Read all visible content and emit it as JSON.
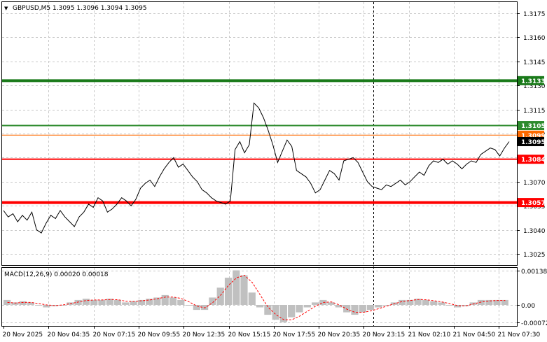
{
  "header": {
    "arrow": "▼",
    "symbol_text": "GBPUSD,M5  1.3095 1.3096 1.3094 1.3095"
  },
  "macd_header": "MACD(12,26,9) 0.00020 0.00018",
  "colors": {
    "background": "#ffffff",
    "grid": "#c8c8c8",
    "price_line": "#000000",
    "resistance_far": "#1a7a1a",
    "resistance_near": "#2e8b2e",
    "support": "#ff0000",
    "macd_hist": "#c0c0c0",
    "macd_signal": "#ff0000",
    "current_tag": "#000000",
    "orange_tag": "#ff6a00"
  },
  "chart_data": [
    {
      "type": "line",
      "title": "GBPUSD,M5  1.3095 1.3096 1.3094 1.3095",
      "x_ticks": [
        "20 Nov 2025",
        "20 Nov 04:35",
        "20 Nov 07:15",
        "20 Nov 09:55",
        "20 Nov 12:35",
        "20 Nov 15:15",
        "20 Nov 17:55",
        "20 Nov 20:35",
        "20 Nov 23:15",
        "21 Nov 02:10",
        "21 Nov 04:50",
        "21 Nov 07:30"
      ],
      "y_ticks": [
        "1.3175",
        "1.3160",
        "1.3145",
        "1.3130",
        "1.3115",
        "1.3100",
        "1.3085",
        "1.3070",
        "1.3055",
        "1.3040",
        "1.3025"
      ],
      "ylim": [
        1.3018,
        1.3182
      ],
      "grid": true,
      "series": [
        {
          "values": [
            1.3052,
            1.3048,
            1.305,
            1.3045,
            1.3049,
            1.3046,
            1.3051,
            1.304,
            1.3038,
            1.3044,
            1.3049,
            1.3047,
            1.3052,
            1.3048,
            1.3045,
            1.3042,
            1.3048,
            1.3051,
            1.3056,
            1.3054,
            1.306,
            1.3058,
            1.3051,
            1.3053,
            1.3056,
            1.306,
            1.3058,
            1.3055,
            1.3059,
            1.3066,
            1.3069,
            1.3071,
            1.3067,
            1.3073,
            1.3078,
            1.3082,
            1.3085,
            1.3079,
            1.3081,
            1.3077,
            1.3073,
            1.307,
            1.3065,
            1.3063,
            1.306,
            1.3058,
            1.3057,
            1.3056,
            1.3058,
            1.309,
            1.3095,
            1.3088,
            1.3093,
            1.3119,
            1.3116,
            1.311,
            1.3102,
            1.3093,
            1.3082,
            1.3089,
            1.3096,
            1.3092,
            1.3077,
            1.3075,
            1.3073,
            1.3069,
            1.3063,
            1.3065,
            1.3071,
            1.3077,
            1.3075,
            1.3071,
            1.3083,
            1.3084,
            1.3085,
            1.3082,
            1.3076,
            1.307,
            1.3067,
            1.3066,
            1.3065,
            1.3068,
            1.3067,
            1.3069,
            1.3071,
            1.3068,
            1.307,
            1.3073,
            1.3076,
            1.3074,
            1.308,
            1.3083,
            1.3082,
            1.3084,
            1.3081,
            1.3083,
            1.3081,
            1.3078,
            1.3081,
            1.3083,
            1.3082,
            1.3087,
            1.3089,
            1.3091,
            1.309,
            1.3086,
            1.3091,
            1.3095
          ]
        }
      ],
      "levels": [
        {
          "label": "1.3133",
          "value": 1.3133,
          "color": "#1a7a1a"
        },
        {
          "label": "1.3105",
          "value": 1.3105,
          "color": "#2e8b2e"
        },
        {
          "label": "1.3099",
          "value": 1.3099,
          "color": "#ff6a00"
        },
        {
          "label": "1.3095",
          "value": 1.3095,
          "color": "#000000"
        },
        {
          "label": "1.3084",
          "value": 1.3084,
          "color": "#ff0000"
        },
        {
          "label": "1.3057",
          "value": 1.3057,
          "color": "#ff0000"
        }
      ],
      "vertical_marker": "21 Nov 2025 00:00 (dashed)"
    },
    {
      "type": "bar",
      "title": "MACD(12,26,9) 0.00020 0.00018",
      "y_ticks": [
        "0.00138",
        "0.00",
        "-0.00072"
      ],
      "ylim": [
        -0.00085,
        0.0015
      ],
      "grid": true,
      "series": [
        {
          "name": "MACD",
          "values": [
            0.0002,
            0.0001,
            0.00015,
            0.0001,
            0.0,
            -0.0001,
            -5e-05,
            0.0,
            0.0001,
            0.0002,
            0.00025,
            0.0002,
            0.0002,
            0.00025,
            0.0002,
            0.0001,
            0.00015,
            0.0002,
            0.00025,
            0.0003,
            0.0004,
            0.0003,
            0.0002,
            0.0,
            -0.0002,
            -0.0002,
            0.0003,
            0.0007,
            0.0011,
            0.0014,
            0.0012,
            0.0005,
            -0.0001,
            -0.0004,
            -0.0006,
            -0.0007,
            -0.0005,
            -0.0003,
            -0.0001,
            0.0001,
            0.0002,
            0.0001,
            -0.0001,
            -0.0003,
            -0.0004,
            -0.0003,
            -0.0002,
            -0.0001,
            0.0,
            0.0001,
            0.0002,
            0.0002,
            0.00025,
            0.0002,
            0.00015,
            0.0001,
            0.0,
            -0.0001,
            -5e-05,
            0.0001,
            0.0002,
            0.0002,
            0.0002,
            0.0002
          ]
        },
        {
          "name": "Signal",
          "values": [
            0.0001,
            8e-05,
            0.0001,
            0.0001,
            5e-05,
            0.0,
            -3e-05,
            0.0,
            5e-05,
            0.00012,
            0.00018,
            0.0002,
            0.0002,
            0.00022,
            0.00021,
            0.00015,
            0.00014,
            0.00017,
            0.0002,
            0.00025,
            0.00032,
            0.00032,
            0.00026,
            0.00012,
            -5e-05,
            -0.00012,
            0.0001,
            0.0004,
            0.0008,
            0.0011,
            0.0012,
            0.0009,
            0.0004,
            -0.0001,
            -0.0004,
            -0.0006,
            -0.0006,
            -0.00045,
            -0.00025,
            -5e-05,
            0.0001,
            0.00012,
            0.0,
            -0.00018,
            -0.0003,
            -0.0003,
            -0.00024,
            -0.00015,
            -5e-05,
            5e-05,
            0.00014,
            0.00018,
            0.00022,
            0.00021,
            0.00017,
            0.00012,
            5e-05,
            -3e-05,
            -4e-05,
            4e-05,
            0.00012,
            0.00016,
            0.00018,
            0.00018
          ]
        }
      ]
    }
  ]
}
